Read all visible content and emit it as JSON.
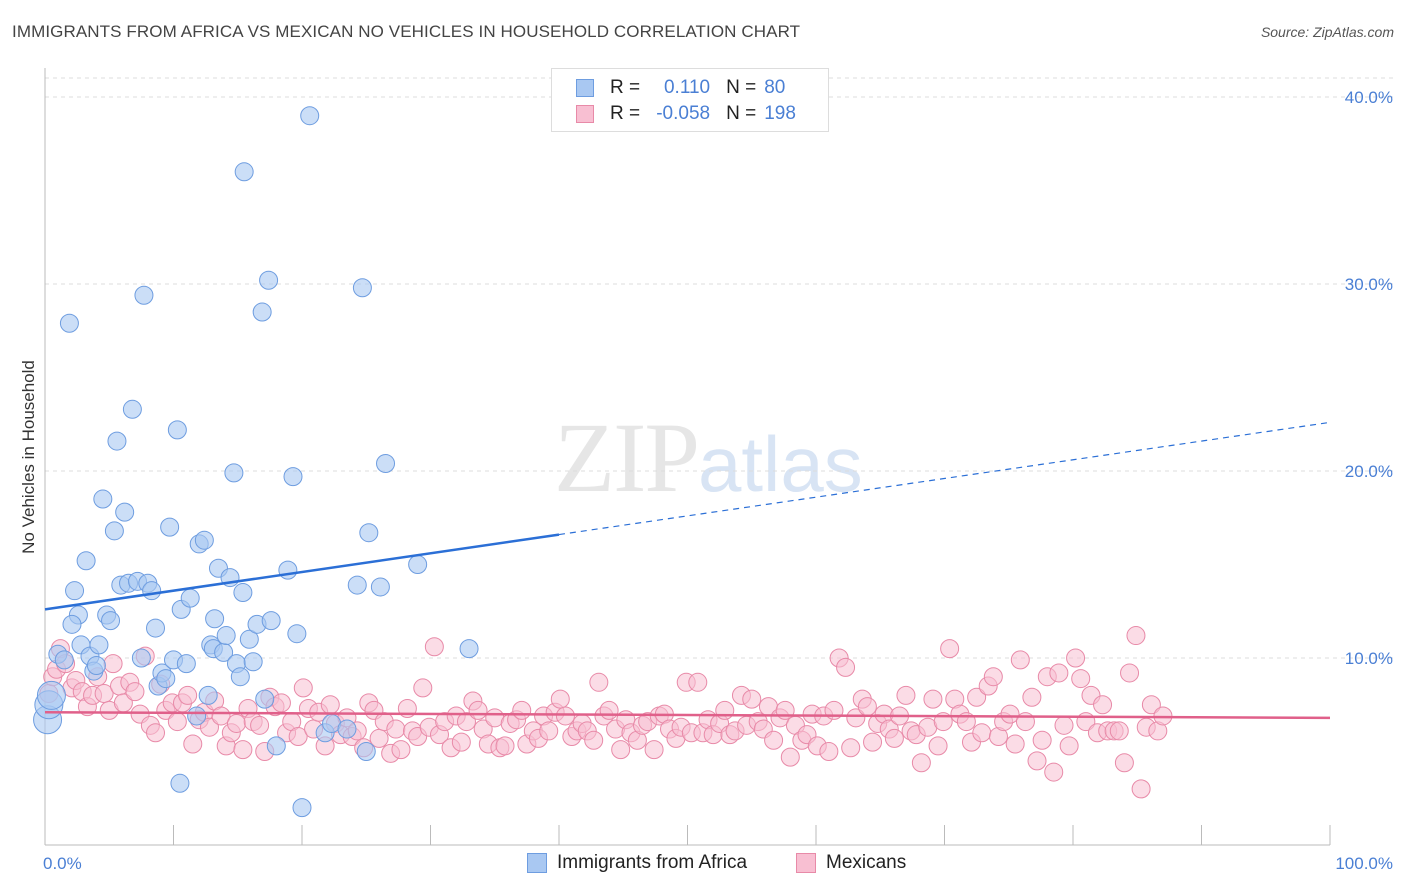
{
  "header": {
    "title": "IMMIGRANTS FROM AFRICA VS MEXICAN NO VEHICLES IN HOUSEHOLD CORRELATION CHART",
    "source": "Source: ZipAtlas.com"
  },
  "watermark": {
    "zip": "ZIP",
    "atlas": "atlas"
  },
  "legend": {
    "rows": [
      {
        "r_label": "R =",
        "r_value": "0.110",
        "n_label": "N =",
        "n_value": "80",
        "color": "#a9c8f2",
        "border": "#6e9de0"
      },
      {
        "r_label": "R =",
        "r_value": "-0.058",
        "n_label": "N =",
        "n_value": "198",
        "color": "#f8bfd2",
        "border": "#e88aa8"
      }
    ]
  },
  "bottom_legend": {
    "africa": "Immigrants from Africa",
    "mexicans": "Mexicans"
  },
  "chart_data": {
    "type": "scatter",
    "title": "IMMIGRANTS FROM AFRICA VS MEXICAN NO VEHICLES IN HOUSEHOLD CORRELATION CHART",
    "ylabel": "No Vehicles in Household",
    "xlabel": "",
    "xlim": [
      0,
      100
    ],
    "ylim": [
      0,
      40
    ],
    "x_tick_labels": [
      "0.0%",
      "100.0%"
    ],
    "y_ticks": [
      10,
      20,
      30,
      40
    ],
    "y_tick_labels": [
      "10.0%",
      "20.0%",
      "30.0%",
      "40.0%"
    ],
    "grid": true,
    "series": [
      {
        "name": "Immigrants from Africa",
        "color": "#a9c8f2",
        "stroke": "#6e9de0",
        "line_color": "#2b6fd6",
        "trend": {
          "x0": 0,
          "y0": 12.6,
          "x_solid_end": 40,
          "x1": 100,
          "y1": 22.6
        },
        "points": [
          [
            0.2,
            6.7
          ],
          [
            0.3,
            7.5
          ],
          [
            0.5,
            8.0
          ],
          [
            1.0,
            10.2
          ],
          [
            1.5,
            9.9
          ],
          [
            1.9,
            27.9
          ],
          [
            2.3,
            13.6
          ],
          [
            2.6,
            12.3
          ],
          [
            2.8,
            10.7
          ],
          [
            2.1,
            11.8
          ],
          [
            3.2,
            15.2
          ],
          [
            3.5,
            10.1
          ],
          [
            3.8,
            9.3
          ],
          [
            4.0,
            9.6
          ],
          [
            4.2,
            10.7
          ],
          [
            4.5,
            18.5
          ],
          [
            4.8,
            12.3
          ],
          [
            5.1,
            12.0
          ],
          [
            5.4,
            16.8
          ],
          [
            5.6,
            21.6
          ],
          [
            5.9,
            13.9
          ],
          [
            6.2,
            17.8
          ],
          [
            6.5,
            14.0
          ],
          [
            6.8,
            23.3
          ],
          [
            7.2,
            14.1
          ],
          [
            7.5,
            10.0
          ],
          [
            7.7,
            29.4
          ],
          [
            8.0,
            14.0
          ],
          [
            8.3,
            13.6
          ],
          [
            8.6,
            11.6
          ],
          [
            8.8,
            8.5
          ],
          [
            9.1,
            9.2
          ],
          [
            9.4,
            8.9
          ],
          [
            9.7,
            17.0
          ],
          [
            10.0,
            9.9
          ],
          [
            10.3,
            22.2
          ],
          [
            10.6,
            12.6
          ],
          [
            11.0,
            9.7
          ],
          [
            11.3,
            13.2
          ],
          [
            11.8,
            6.9
          ],
          [
            12.0,
            16.1
          ],
          [
            12.4,
            16.3
          ],
          [
            12.7,
            8.0
          ],
          [
            12.9,
            10.7
          ],
          [
            13.1,
            10.5
          ],
          [
            13.2,
            12.1
          ],
          [
            13.5,
            14.8
          ],
          [
            13.9,
            10.3
          ],
          [
            14.1,
            11.2
          ],
          [
            14.4,
            14.3
          ],
          [
            14.7,
            19.9
          ],
          [
            14.9,
            9.7
          ],
          [
            15.2,
            9.0
          ],
          [
            15.4,
            13.5
          ],
          [
            15.5,
            36.0
          ],
          [
            15.9,
            11.0
          ],
          [
            16.2,
            9.8
          ],
          [
            16.5,
            11.8
          ],
          [
            16.9,
            28.5
          ],
          [
            17.1,
            7.8
          ],
          [
            17.4,
            30.2
          ],
          [
            17.6,
            12.0
          ],
          [
            18.0,
            5.3
          ],
          [
            18.9,
            14.7
          ],
          [
            19.3,
            19.7
          ],
          [
            19.6,
            11.3
          ],
          [
            20.0,
            2.0
          ],
          [
            20.6,
            39.0
          ],
          [
            21.8,
            6.0
          ],
          [
            22.3,
            6.5
          ],
          [
            23.5,
            6.2
          ],
          [
            24.3,
            13.9
          ],
          [
            24.7,
            29.8
          ],
          [
            25.0,
            5.0
          ],
          [
            25.2,
            16.7
          ],
          [
            26.1,
            13.8
          ],
          [
            26.5,
            20.4
          ],
          [
            29.0,
            15.0
          ],
          [
            33.0,
            10.5
          ],
          [
            10.5,
            3.3
          ]
        ]
      },
      {
        "name": "Mexicans",
        "color": "#f8bfd2",
        "stroke": "#e88aa8",
        "line_color": "#e0608a",
        "trend": {
          "x0": 0,
          "y0": 7.1,
          "x1": 100,
          "y1": 6.8
        },
        "points": [
          [
            0.3,
            8.1
          ],
          [
            0.6,
            9.0
          ],
          [
            0.9,
            9.4
          ],
          [
            1.2,
            10.5
          ],
          [
            1.6,
            9.7
          ],
          [
            2.1,
            8.4
          ],
          [
            2.4,
            8.8
          ],
          [
            2.9,
            8.2
          ],
          [
            3.3,
            7.4
          ],
          [
            3.7,
            8.0
          ],
          [
            4.1,
            9.0
          ],
          [
            4.6,
            8.1
          ],
          [
            5.0,
            7.2
          ],
          [
            5.3,
            9.7
          ],
          [
            5.8,
            8.5
          ],
          [
            6.1,
            7.6
          ],
          [
            6.6,
            8.7
          ],
          [
            7.0,
            8.2
          ],
          [
            7.4,
            7.0
          ],
          [
            7.8,
            10.1
          ],
          [
            8.2,
            6.4
          ],
          [
            8.6,
            6.0
          ],
          [
            9.0,
            8.6
          ],
          [
            9.4,
            7.2
          ],
          [
            9.9,
            7.6
          ],
          [
            10.3,
            6.6
          ],
          [
            10.7,
            7.6
          ],
          [
            11.1,
            8.0
          ],
          [
            11.5,
            5.4
          ],
          [
            12.0,
            6.7
          ],
          [
            12.4,
            7.1
          ],
          [
            12.8,
            6.3
          ],
          [
            13.2,
            7.7
          ],
          [
            13.7,
            6.9
          ],
          [
            14.1,
            5.3
          ],
          [
            14.5,
            6.0
          ],
          [
            14.9,
            6.5
          ],
          [
            15.4,
            5.1
          ],
          [
            15.8,
            7.3
          ],
          [
            16.2,
            6.6
          ],
          [
            16.7,
            6.4
          ],
          [
            17.1,
            5.0
          ],
          [
            17.5,
            7.9
          ],
          [
            17.9,
            7.4
          ],
          [
            18.4,
            7.6
          ],
          [
            18.8,
            6.0
          ],
          [
            19.2,
            6.6
          ],
          [
            19.7,
            5.8
          ],
          [
            20.1,
            8.4
          ],
          [
            20.5,
            7.3
          ],
          [
            20.9,
            6.2
          ],
          [
            21.3,
            7.1
          ],
          [
            21.8,
            5.3
          ],
          [
            22.2,
            7.5
          ],
          [
            22.6,
            6.5
          ],
          [
            23.0,
            5.9
          ],
          [
            23.5,
            6.8
          ],
          [
            23.9,
            5.8
          ],
          [
            24.3,
            6.1
          ],
          [
            24.8,
            5.2
          ],
          [
            25.2,
            7.6
          ],
          [
            25.6,
            7.2
          ],
          [
            26.0,
            5.7
          ],
          [
            26.4,
            6.6
          ],
          [
            26.9,
            4.9
          ],
          [
            27.3,
            6.2
          ],
          [
            27.7,
            5.1
          ],
          [
            28.2,
            7.3
          ],
          [
            28.6,
            6.1
          ],
          [
            29.0,
            5.8
          ],
          [
            29.4,
            8.4
          ],
          [
            29.9,
            6.3
          ],
          [
            30.3,
            10.6
          ],
          [
            30.7,
            5.9
          ],
          [
            31.1,
            6.6
          ],
          [
            31.6,
            5.2
          ],
          [
            32.0,
            6.9
          ],
          [
            32.4,
            5.5
          ],
          [
            32.8,
            6.6
          ],
          [
            33.3,
            7.7
          ],
          [
            33.7,
            7.2
          ],
          [
            34.1,
            6.2
          ],
          [
            34.5,
            5.4
          ],
          [
            35.0,
            6.8
          ],
          [
            35.4,
            5.2
          ],
          [
            35.8,
            5.3
          ],
          [
            36.2,
            6.5
          ],
          [
            36.7,
            6.7
          ],
          [
            37.1,
            7.2
          ],
          [
            37.5,
            5.4
          ],
          [
            38.0,
            6.1
          ],
          [
            38.4,
            5.7
          ],
          [
            38.8,
            6.9
          ],
          [
            39.2,
            6.1
          ],
          [
            39.7,
            7.1
          ],
          [
            40.1,
            7.8
          ],
          [
            40.5,
            6.9
          ],
          [
            41.0,
            5.8
          ],
          [
            41.4,
            6.1
          ],
          [
            41.8,
            6.5
          ],
          [
            42.2,
            6.1
          ],
          [
            42.7,
            5.6
          ],
          [
            43.1,
            8.7
          ],
          [
            43.5,
            6.9
          ],
          [
            43.9,
            7.2
          ],
          [
            44.4,
            6.2
          ],
          [
            44.8,
            5.1
          ],
          [
            45.2,
            6.7
          ],
          [
            45.6,
            6.0
          ],
          [
            46.1,
            5.6
          ],
          [
            46.5,
            6.4
          ],
          [
            46.9,
            6.6
          ],
          [
            47.4,
            5.1
          ],
          [
            47.8,
            6.9
          ],
          [
            48.2,
            7.0
          ],
          [
            48.6,
            6.2
          ],
          [
            49.1,
            5.7
          ],
          [
            49.5,
            6.3
          ],
          [
            49.9,
            8.7
          ],
          [
            50.3,
            6.0
          ],
          [
            50.8,
            8.7
          ],
          [
            51.2,
            6.0
          ],
          [
            51.6,
            6.7
          ],
          [
            52.0,
            5.9
          ],
          [
            52.5,
            6.5
          ],
          [
            52.9,
            7.2
          ],
          [
            53.3,
            5.9
          ],
          [
            53.7,
            6.1
          ],
          [
            54.2,
            8.0
          ],
          [
            54.6,
            6.4
          ],
          [
            55.0,
            7.8
          ],
          [
            55.5,
            6.6
          ],
          [
            55.9,
            6.2
          ],
          [
            56.3,
            7.4
          ],
          [
            56.7,
            5.6
          ],
          [
            57.2,
            6.8
          ],
          [
            57.6,
            7.2
          ],
          [
            58.0,
            4.7
          ],
          [
            58.4,
            6.4
          ],
          [
            58.9,
            5.6
          ],
          [
            59.3,
            5.9
          ],
          [
            59.7,
            7.0
          ],
          [
            60.1,
            5.3
          ],
          [
            60.6,
            6.9
          ],
          [
            61.0,
            5.0
          ],
          [
            61.4,
            7.2
          ],
          [
            61.8,
            10.0
          ],
          [
            62.3,
            9.5
          ],
          [
            62.7,
            5.2
          ],
          [
            63.1,
            6.8
          ],
          [
            63.6,
            7.8
          ],
          [
            64.0,
            7.4
          ],
          [
            64.4,
            5.5
          ],
          [
            64.8,
            6.5
          ],
          [
            65.3,
            7.0
          ],
          [
            65.7,
            6.2
          ],
          [
            66.1,
            5.7
          ],
          [
            66.5,
            6.9
          ],
          [
            67.0,
            8.0
          ],
          [
            67.4,
            6.1
          ],
          [
            67.8,
            5.9
          ],
          [
            68.2,
            4.4
          ],
          [
            68.7,
            6.3
          ],
          [
            69.1,
            7.8
          ],
          [
            69.5,
            5.3
          ],
          [
            69.9,
            6.6
          ],
          [
            70.4,
            10.5
          ],
          [
            70.8,
            7.8
          ],
          [
            71.2,
            7.0
          ],
          [
            71.7,
            6.6
          ],
          [
            72.1,
            5.5
          ],
          [
            72.5,
            7.9
          ],
          [
            72.9,
            6.0
          ],
          [
            73.4,
            8.5
          ],
          [
            73.8,
            9.0
          ],
          [
            74.2,
            5.8
          ],
          [
            74.6,
            6.6
          ],
          [
            75.1,
            7.0
          ],
          [
            75.5,
            5.4
          ],
          [
            75.9,
            9.9
          ],
          [
            76.3,
            6.6
          ],
          [
            76.8,
            7.9
          ],
          [
            77.2,
            4.5
          ],
          [
            77.6,
            5.6
          ],
          [
            78.0,
            9.0
          ],
          [
            78.5,
            3.9
          ],
          [
            78.9,
            9.2
          ],
          [
            79.3,
            6.4
          ],
          [
            79.7,
            5.3
          ],
          [
            80.2,
            10.0
          ],
          [
            80.6,
            8.9
          ],
          [
            81.0,
            6.6
          ],
          [
            81.4,
            8.0
          ],
          [
            81.9,
            6.0
          ],
          [
            82.3,
            7.5
          ],
          [
            82.7,
            6.1
          ],
          [
            83.2,
            6.1
          ],
          [
            83.6,
            6.1
          ],
          [
            84.0,
            4.4
          ],
          [
            84.4,
            9.2
          ],
          [
            84.9,
            11.2
          ],
          [
            85.3,
            3.0
          ],
          [
            85.7,
            6.3
          ],
          [
            86.1,
            7.5
          ],
          [
            86.6,
            6.1
          ],
          [
            87.0,
            6.9
          ]
        ]
      }
    ]
  }
}
